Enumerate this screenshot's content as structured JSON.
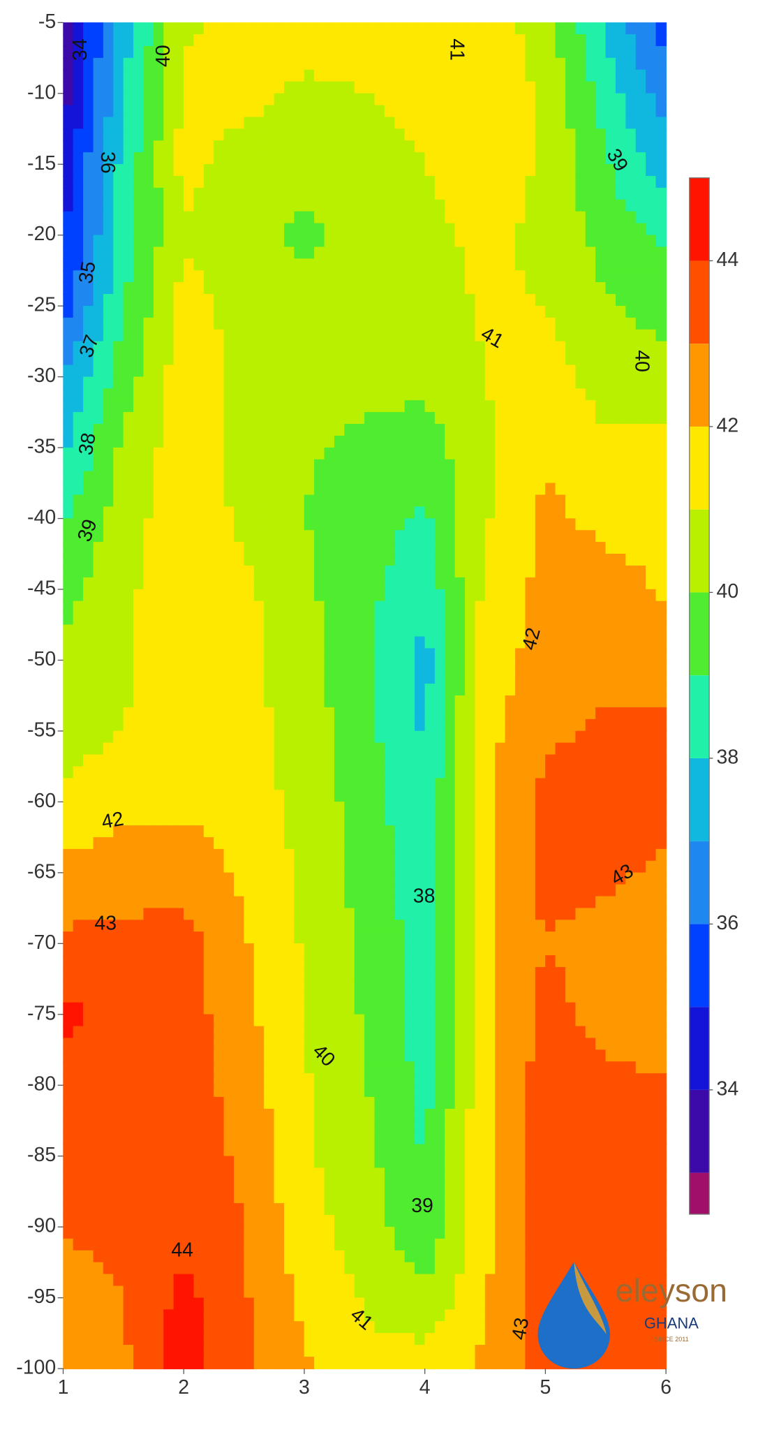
{
  "chart_data": {
    "type": "contour",
    "x": [
      1,
      1.5,
      2,
      2.5,
      3,
      3.5,
      4,
      4.5,
      5,
      5.5,
      6
    ],
    "y": [
      -5,
      -10,
      -15,
      -20,
      -25,
      -30,
      -35,
      -40,
      -45,
      -50,
      -55,
      -60,
      -65,
      -70,
      -75,
      -80,
      -85,
      -90,
      -95,
      -100
    ],
    "z": [
      [
        33.5,
        37.5,
        40.8,
        41.5,
        41.5,
        41.5,
        41.3,
        41.6,
        40.5,
        37.8,
        35.5
      ],
      [
        33.5,
        38,
        41.2,
        41.3,
        40.8,
        41,
        41.2,
        41.8,
        40.8,
        38.5,
        36.5
      ],
      [
        34.5,
        38.3,
        41.3,
        40.6,
        40.5,
        40.7,
        41,
        41.4,
        40.9,
        39.1,
        37.5
      ],
      [
        34.8,
        38.5,
        40.9,
        40.5,
        39.7,
        40.6,
        40.8,
        41.2,
        40.8,
        39.6,
        38.8
      ],
      [
        35.5,
        39,
        41.3,
        40.7,
        40.4,
        40.6,
        40.6,
        41.1,
        41,
        40.1,
        39.6
      ],
      [
        37,
        39.5,
        41.6,
        40.8,
        40.5,
        40.3,
        40.3,
        41,
        41.5,
        40.5,
        40.5
      ],
      [
        37.8,
        40.2,
        41.6,
        40.6,
        40.1,
        39.8,
        39.5,
        40.8,
        41.9,
        41.2,
        41.2
      ],
      [
        38.8,
        40.5,
        41.7,
        40.8,
        40,
        39.5,
        38.8,
        40.9,
        42.2,
        41.8,
        41.8
      ],
      [
        39.6,
        40.8,
        41.6,
        41.2,
        40.2,
        39.3,
        38.3,
        41.2,
        42.3,
        42.3,
        41.9
      ],
      [
        40.2,
        40.9,
        41.4,
        41.4,
        40.4,
        39.2,
        37.6,
        41.5,
        42.4,
        42.6,
        42.5
      ],
      [
        40.6,
        41,
        41.4,
        41.3,
        40.6,
        39.3,
        37.9,
        41.7,
        42.8,
        43.2,
        43.3
      ],
      [
        41.2,
        41.7,
        41.8,
        41.5,
        40.7,
        39.5,
        38.2,
        41.8,
        43.3,
        43.4,
        43.4
      ],
      [
        42.3,
        42.5,
        42.6,
        41.8,
        40.8,
        39.6,
        38.4,
        41.8,
        43.3,
        43.2,
        42.8
      ],
      [
        43.2,
        43.3,
        43.4,
        42.1,
        40.9,
        39.8,
        38.5,
        41.8,
        43,
        42.6,
        42.4
      ],
      [
        44.3,
        43.5,
        43.5,
        42.3,
        41,
        39.9,
        38.6,
        41.8,
        43.3,
        42.7,
        42.3
      ],
      [
        43.5,
        43.5,
        43.6,
        42.5,
        41.1,
        40.1,
        38.7,
        41.7,
        43.5,
        43.2,
        43.1
      ],
      [
        43.4,
        43.4,
        43.6,
        42.8,
        41.2,
        40.3,
        38.9,
        41.8,
        43.5,
        43.4,
        43.3
      ],
      [
        43.1,
        43.3,
        43.7,
        43,
        41.4,
        40.5,
        39.2,
        41.8,
        43.5,
        43.4,
        43.4
      ],
      [
        42.5,
        43,
        44.3,
        43.1,
        41.8,
        40.9,
        40.2,
        41.9,
        43.4,
        43.4,
        43.4
      ],
      [
        42.2,
        42.8,
        44.6,
        43.2,
        42.1,
        41.3,
        41.5,
        42.2,
        43.3,
        43.4,
        43.4
      ]
    ],
    "xlim": [
      1,
      6
    ],
    "xticks": [
      1,
      2,
      3,
      4,
      5,
      6
    ],
    "ylim": [
      -100,
      -5
    ],
    "yticks": [
      -5,
      -10,
      -15,
      -20,
      -25,
      -30,
      -35,
      -40,
      -45,
      -50,
      -55,
      -60,
      -65,
      -70,
      -75,
      -80,
      -85,
      -90,
      -95,
      -100
    ],
    "levels": [
      33,
      34,
      35,
      36,
      37,
      38,
      39,
      40,
      41,
      42,
      43,
      44
    ],
    "clim": [
      32.5,
      45
    ],
    "colors": [
      "#a0106a",
      "#3c0aa8",
      "#1414d8",
      "#0040ff",
      "#1e88f0",
      "#10b8e0",
      "#20f0a8",
      "#50ec30",
      "#b8f000",
      "#ffe800",
      "#ff9800",
      "#ff5000",
      "#ff1400"
    ],
    "colorbar_ticks": [
      34,
      36,
      38,
      40,
      42,
      44
    ],
    "contour_labels": [
      34,
      40,
      41,
      36,
      39,
      35,
      41,
      37,
      40,
      38,
      39,
      42,
      42,
      43,
      43,
      38,
      40,
      39,
      44,
      41,
      43
    ]
  },
  "watermark": {
    "brand": "eleyson",
    "country": "GHANA",
    "since": "SINCE 2011"
  }
}
